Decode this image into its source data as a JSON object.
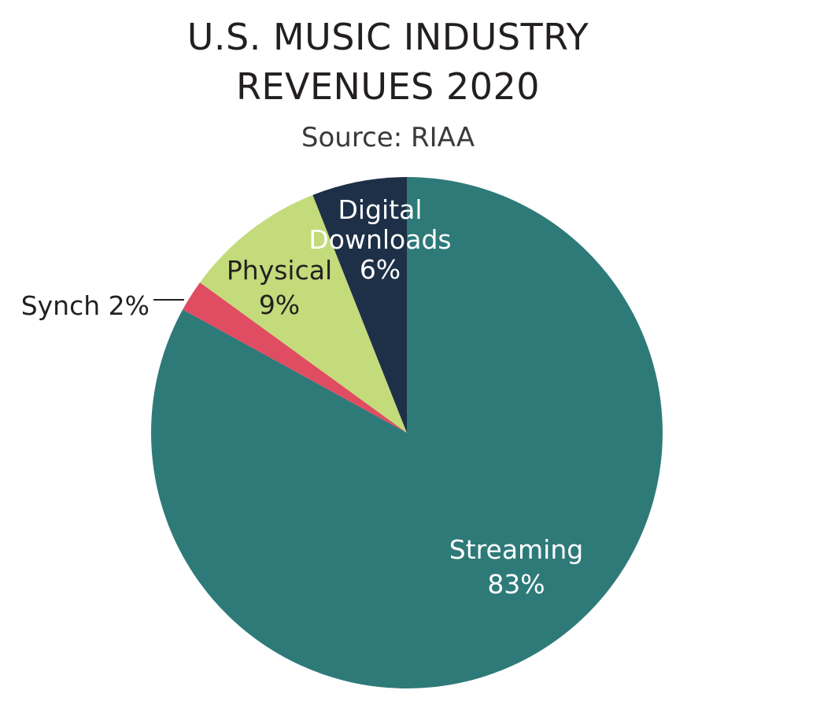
{
  "chart_data": {
    "type": "pie",
    "title_lines": [
      "U.S. MUSIC INDUSTRY",
      "REVENUES 2020"
    ],
    "subtitle": "Source: RIAA",
    "slices": [
      {
        "name": "Streaming",
        "label_lines": [
          "Streaming",
          "83%"
        ],
        "value": 83,
        "color": "#2e7a79",
        "label_color": "#ffffff"
      },
      {
        "name": "Synch",
        "label_lines": [
          "Synch 2%"
        ],
        "value": 2,
        "color": "#e04c62",
        "label_color": "#231f20"
      },
      {
        "name": "Physical",
        "label_lines": [
          "Physical",
          "9%"
        ],
        "value": 9,
        "color": "#c3db7a",
        "label_color": "#231f20"
      },
      {
        "name": "Digital Downloads",
        "label_lines": [
          "Digital",
          "Downloads",
          "6%"
        ],
        "value": 6,
        "color": "#1d3047",
        "label_color": "#ffffff"
      }
    ],
    "start_angle_deg": 0,
    "direction": "clockwise",
    "legend": "none"
  }
}
